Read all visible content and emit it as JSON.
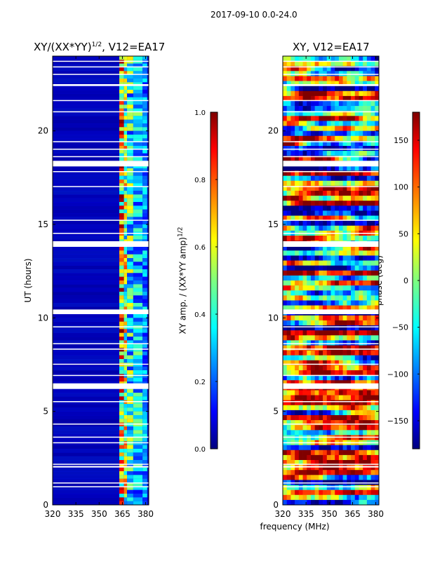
{
  "figure": {
    "suptitle": "2017-09-10 0.0-24.0",
    "xlabel": "frequency (MHz)"
  },
  "chart_data": [
    {
      "type": "heatmap",
      "name": "amplitude-panel",
      "title_base": "XY/(XX*YY)",
      "title_sup": "1/2",
      "title_suffix": ", V12=EA17",
      "xlabel": "",
      "ylabel": "UT (hours)",
      "xlim": [
        320,
        382
      ],
      "ylim": [
        0,
        24
      ],
      "xticks": [
        320,
        335,
        350,
        365,
        380
      ],
      "yticks": [
        0,
        5,
        10,
        15,
        20
      ],
      "colorbar": {
        "label": "XY amp. / (XX*YY amp)",
        "label_sup": "1/2",
        "range": [
          0.0,
          1.0
        ],
        "ticks": [
          "0.0",
          "0.2",
          "0.4",
          "0.6",
          "0.8",
          "1.0"
        ],
        "colormap": "jet"
      }
    },
    {
      "type": "heatmap",
      "name": "phase-panel",
      "title": "XY, V12=EA17",
      "xlabel": "",
      "ylabel": "",
      "xlim": [
        320,
        382
      ],
      "ylim": [
        0,
        24
      ],
      "xticks": [
        320,
        335,
        350,
        365,
        380
      ],
      "yticks": [
        0,
        5,
        10,
        15,
        20
      ],
      "colorbar": {
        "label": "phase (deg)",
        "range": [
          -180,
          180
        ],
        "ticks": [
          "−150",
          "−100",
          "−50",
          "0",
          "50",
          "100",
          "150"
        ],
        "tick_values": [
          -150,
          -100,
          -50,
          0,
          50,
          100,
          150
        ],
        "colormap": "jet"
      }
    }
  ]
}
